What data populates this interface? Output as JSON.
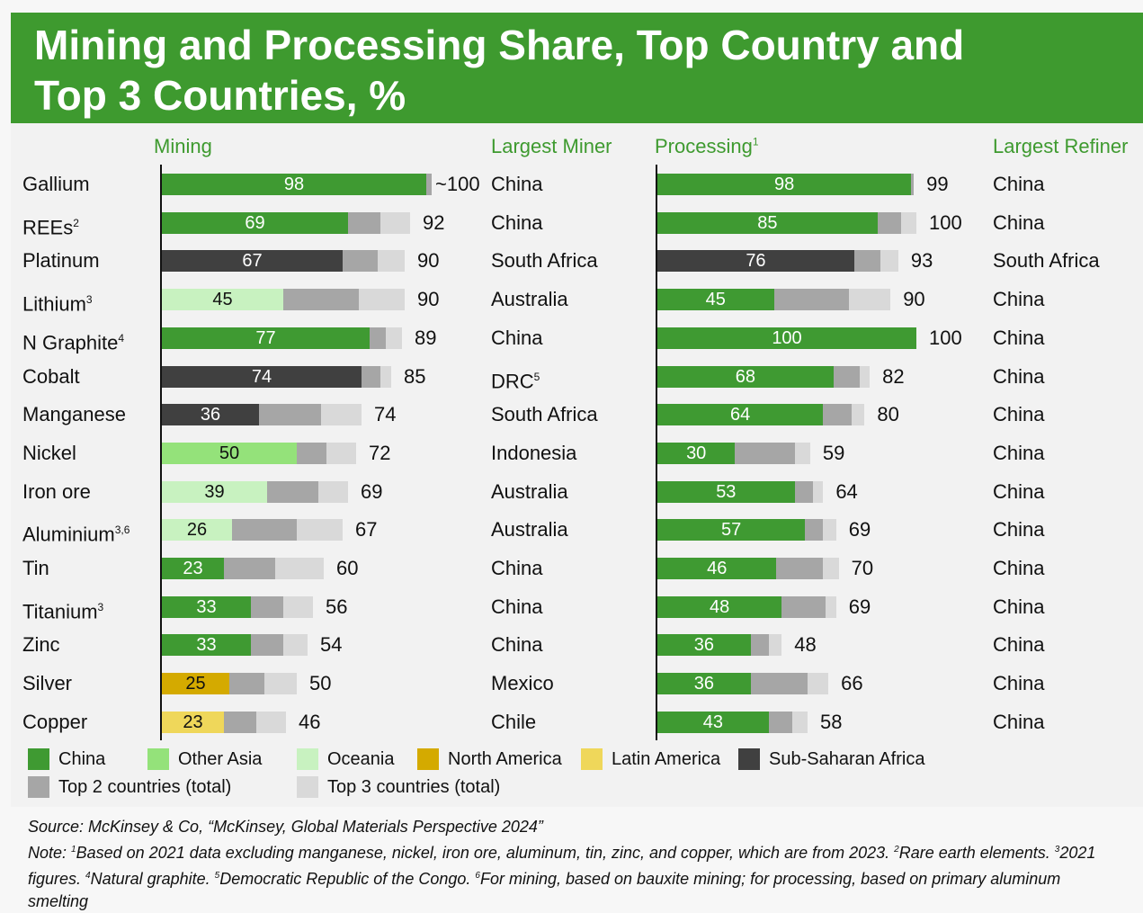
{
  "title": "Mining and Processing Share, Top Country and Top 3 Countries, %",
  "chart_data": {
    "type": "bar",
    "stacked": "cumulative",
    "headers": {
      "mining": "Mining",
      "largest_miner": "Largest Miner",
      "processing": "Processing",
      "processing_sup": "1",
      "largest_refiner": "Largest Refiner"
    },
    "xlim": [
      0,
      100
    ],
    "colors": {
      "China": "#3f9a32",
      "Other Asia": "#94e27a",
      "Oceania": "#c8f2c0",
      "North America": "#d4aa00",
      "Latin America": "#efd75a",
      "Sub-Saharan Africa": "#404040",
      "Top 2 countries (total)": "#a6a6a6",
      "Top 3 countries (total)": "#d9d9d9"
    },
    "rows": [
      {
        "name": "Gallium",
        "sup": "",
        "mining": {
          "region": "China",
          "top1": 98,
          "top2": 100,
          "top3": 100,
          "top3_label": "~100"
        },
        "miner": "China",
        "processing": {
          "region": "China",
          "top1": 98,
          "top2": 99,
          "top3": 99,
          "top3_label": "99"
        },
        "refiner": "China"
      },
      {
        "name": "REEs",
        "sup": "2",
        "mining": {
          "region": "China",
          "top1": 69,
          "top2": 81,
          "top3": 92,
          "top3_label": "92"
        },
        "miner": "China",
        "processing": {
          "region": "China",
          "top1": 85,
          "top2": 94,
          "top3": 100,
          "top3_label": "100"
        },
        "refiner": "China"
      },
      {
        "name": "Platinum",
        "sup": "",
        "mining": {
          "region": "Sub-Saharan Africa",
          "top1": 67,
          "top2": 80,
          "top3": 90,
          "top3_label": "90"
        },
        "miner": "South Africa",
        "processing": {
          "region": "Sub-Saharan Africa",
          "top1": 76,
          "top2": 86,
          "top3": 93,
          "top3_label": "93"
        },
        "refiner": "South Africa"
      },
      {
        "name": "Lithium",
        "sup": "3",
        "mining": {
          "region": "Oceania",
          "top1": 45,
          "top2": 73,
          "top3": 90,
          "top3_label": "90"
        },
        "miner": "Australia",
        "processing": {
          "region": "China",
          "top1": 45,
          "top2": 74,
          "top3": 90,
          "top3_label": "90"
        },
        "refiner": "China"
      },
      {
        "name": "N Graphite",
        "sup": "4",
        "mining": {
          "region": "China",
          "top1": 77,
          "top2": 83,
          "top3": 89,
          "top3_label": "89"
        },
        "miner": "China",
        "processing": {
          "region": "China",
          "top1": 100,
          "top2": 100,
          "top3": 100,
          "top3_label": "100"
        },
        "refiner": "China"
      },
      {
        "name": "Cobalt",
        "sup": "",
        "mining": {
          "region": "Sub-Saharan Africa",
          "top1": 74,
          "top2": 81,
          "top3": 85,
          "top3_label": "85"
        },
        "miner": "DRC",
        "miner_sup": "5",
        "processing": {
          "region": "China",
          "top1": 68,
          "top2": 78,
          "top3": 82,
          "top3_label": "82"
        },
        "refiner": "China"
      },
      {
        "name": "Manganese",
        "sup": "",
        "mining": {
          "region": "Sub-Saharan Africa",
          "top1": 36,
          "top2": 59,
          "top3": 74,
          "top3_label": "74"
        },
        "miner": "South Africa",
        "processing": {
          "region": "China",
          "top1": 64,
          "top2": 75,
          "top3": 80,
          "top3_label": "80"
        },
        "refiner": "China"
      },
      {
        "name": "Nickel",
        "sup": "",
        "mining": {
          "region": "Other Asia",
          "top1": 50,
          "top2": 61,
          "top3": 72,
          "top3_label": "72"
        },
        "miner": "Indonesia",
        "processing": {
          "region": "China",
          "top1": 30,
          "top2": 53,
          "top3": 59,
          "top3_label": "59"
        },
        "refiner": "China"
      },
      {
        "name": "Iron ore",
        "sup": "",
        "mining": {
          "region": "Oceania",
          "top1": 39,
          "top2": 58,
          "top3": 69,
          "top3_label": "69"
        },
        "miner": "Australia",
        "processing": {
          "region": "China",
          "top1": 53,
          "top2": 60,
          "top3": 64,
          "top3_label": "64"
        },
        "refiner": "China"
      },
      {
        "name": "Aluminium",
        "sup": "3,6",
        "mining": {
          "region": "Oceania",
          "top1": 26,
          "top2": 50,
          "top3": 67,
          "top3_label": "67"
        },
        "miner": "Australia",
        "processing": {
          "region": "China",
          "top1": 57,
          "top2": 64,
          "top3": 69,
          "top3_label": "69"
        },
        "refiner": "China"
      },
      {
        "name": "Tin",
        "sup": "",
        "mining": {
          "region": "China",
          "top1": 23,
          "top2": 42,
          "top3": 60,
          "top3_label": "60"
        },
        "miner": "China",
        "processing": {
          "region": "China",
          "top1": 46,
          "top2": 64,
          "top3": 70,
          "top3_label": "70"
        },
        "refiner": "China"
      },
      {
        "name": "Titanium",
        "sup": "3",
        "mining": {
          "region": "China",
          "top1": 33,
          "top2": 45,
          "top3": 56,
          "top3_label": "56"
        },
        "miner": "China",
        "processing": {
          "region": "China",
          "top1": 48,
          "top2": 65,
          "top3": 69,
          "top3_label": "69"
        },
        "refiner": "China"
      },
      {
        "name": "Zinc",
        "sup": "",
        "mining": {
          "region": "China",
          "top1": 33,
          "top2": 45,
          "top3": 54,
          "top3_label": "54"
        },
        "miner": "China",
        "processing": {
          "region": "China",
          "top1": 36,
          "top2": 43,
          "top3": 48,
          "top3_label": "48"
        },
        "refiner": "China"
      },
      {
        "name": "Silver",
        "sup": "",
        "mining": {
          "region": "North America",
          "top1": 25,
          "top2": 38,
          "top3": 50,
          "top3_label": "50"
        },
        "miner": "Mexico",
        "processing": {
          "region": "China",
          "top1": 36,
          "top2": 58,
          "top3": 66,
          "top3_label": "66"
        },
        "refiner": "China"
      },
      {
        "name": "Copper",
        "sup": "",
        "mining": {
          "region": "Latin America",
          "top1": 23,
          "top2": 35,
          "top3": 46,
          "top3_label": "46"
        },
        "miner": "Chile",
        "processing": {
          "region": "China",
          "top1": 43,
          "top2": 52,
          "top3": 58,
          "top3_label": "58"
        },
        "refiner": "China"
      }
    ],
    "legend": [
      "China",
      "Other Asia",
      "Oceania",
      "North America",
      "Latin America",
      "Sub-Saharan Africa",
      "Top 2 countries (total)",
      "Top 3 countries (total)"
    ]
  },
  "source": "Source: McKinsey & Co, “McKinsey, Global Materials Perspective 2024”",
  "note": {
    "prefix": "Note: ",
    "parts": [
      {
        "sup": "1",
        "text": "Based on 2021 data excluding manganese, nickel, iron ore, aluminum, tin, zinc, and copper, which are from 2023. "
      },
      {
        "sup": "2",
        "text": "Rare earth elements. "
      },
      {
        "sup": "3",
        "text": "2021 figures. "
      },
      {
        "sup": "4",
        "text": "Natural graphite. "
      },
      {
        "sup": "5",
        "text": "Democratic Republic of the Congo. "
      },
      {
        "sup": "6",
        "text": "For mining, based on bauxite mining; for processing, based on primary aluminum smelting"
      }
    ]
  }
}
